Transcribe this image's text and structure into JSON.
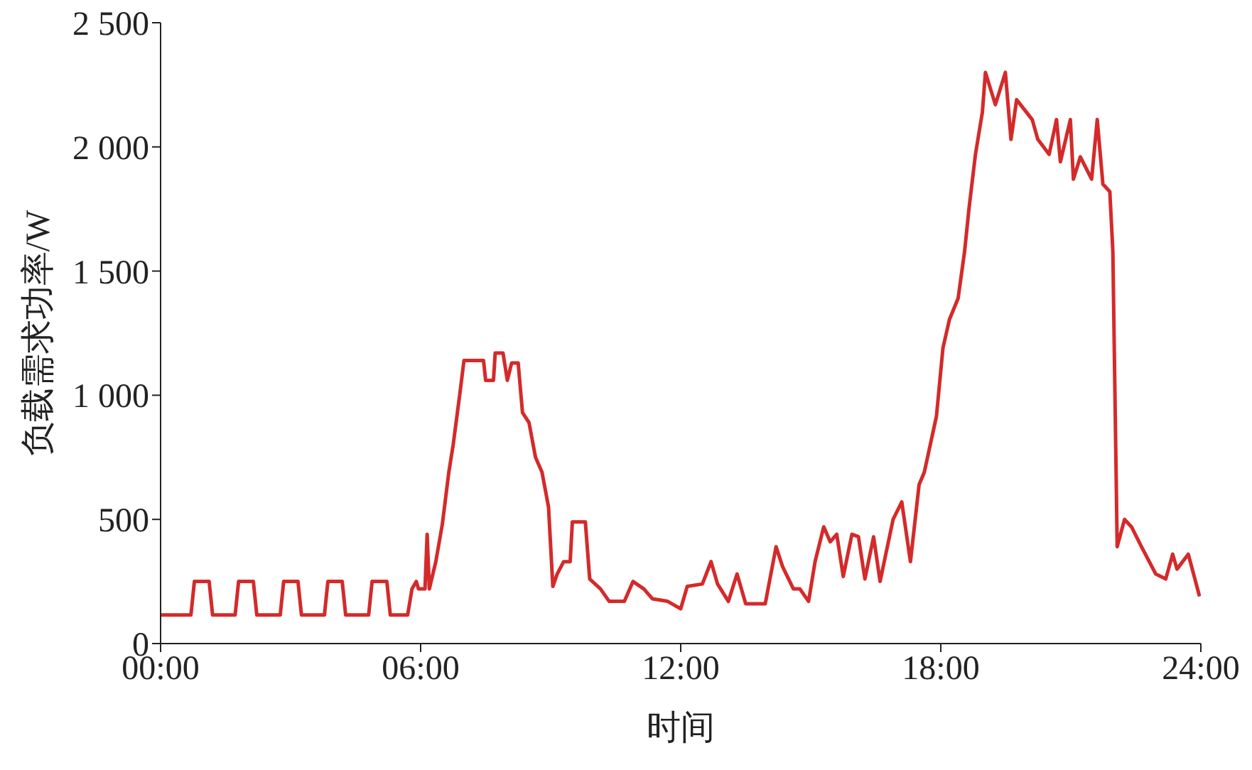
{
  "chart_data": {
    "type": "line",
    "xlabel": "时间",
    "ylabel": "负载需求功率/W",
    "xlim": [
      0,
      24
    ],
    "xticks": [
      {
        "value": 0,
        "label": "00:00"
      },
      {
        "value": 6,
        "label": "06:00"
      },
      {
        "value": 12,
        "label": "12:00"
      },
      {
        "value": 18,
        "label": "18:00"
      },
      {
        "value": 24,
        "label": "24:00"
      }
    ],
    "ylim": [
      0,
      2500
    ],
    "yticks": [
      0,
      500,
      {
        "value": 1000,
        "label": "1 000"
      },
      {
        "value": 1500,
        "label": "1 500"
      },
      {
        "value": 2000,
        "label": "2 000"
      },
      {
        "value": 2500,
        "label": "2 500"
      }
    ],
    "marker": "none",
    "line_style": "solid",
    "x": [
      0,
      0.7,
      0.78,
      1.12,
      1.2,
      1.72,
      1.8,
      2.14,
      2.22,
      2.76,
      2.84,
      3.17,
      3.25,
      3.78,
      3.86,
      4.19,
      4.27,
      4.8,
      4.88,
      5.22,
      5.3,
      5.7,
      5.8,
      5.9,
      5.95,
      6.1,
      6.15,
      6.2,
      6.35,
      6.5,
      6.65,
      6.75,
      6.9,
      7.0,
      7.45,
      7.5,
      7.68,
      7.72,
      7.9,
      8.0,
      8.1,
      8.25,
      8.35,
      8.5,
      8.65,
      8.8,
      8.95,
      9.05,
      9.15,
      9.3,
      9.45,
      9.5,
      9.8,
      9.9,
      10.15,
      10.35,
      10.7,
      10.9,
      11.15,
      11.35,
      11.7,
      12.0,
      12.15,
      12.5,
      12.7,
      12.85,
      13.1,
      13.3,
      13.5,
      13.95,
      14.2,
      14.35,
      14.6,
      14.75,
      14.95,
      15.1,
      15.3,
      15.45,
      15.6,
      15.75,
      15.95,
      16.1,
      16.25,
      16.45,
      16.6,
      16.9,
      17.1,
      17.3,
      17.5,
      17.62,
      17.9,
      18.05,
      18.2,
      18.4,
      18.55,
      18.65,
      18.8,
      18.96,
      19.03,
      19.26,
      19.49,
      19.62,
      19.75,
      20.11,
      20.24,
      20.5,
      20.67,
      20.76,
      20.99,
      21.06,
      21.22,
      21.48,
      21.61,
      21.74,
      21.9,
      21.97,
      22.07,
      22.24,
      22.4,
      22.63,
      22.96,
      23.19,
      23.35,
      23.45,
      23.71,
      23.97
    ],
    "series": [
      {
        "color": "#d42a2a",
        "values": [
          115,
          115,
          250,
          250,
          115,
          115,
          250,
          250,
          115,
          115,
          250,
          250,
          115,
          115,
          250,
          250,
          115,
          115,
          250,
          250,
          115,
          115,
          220,
          250,
          220,
          220,
          440,
          220,
          330,
          480,
          690,
          800,
          1000,
          1140,
          1140,
          1060,
          1060,
          1170,
          1170,
          1060,
          1130,
          1130,
          930,
          890,
          750,
          690,
          550,
          230,
          280,
          330,
          330,
          490,
          490,
          260,
          220,
          170,
          170,
          250,
          220,
          180,
          170,
          140,
          230,
          240,
          330,
          240,
          170,
          280,
          160,
          160,
          390,
          310,
          220,
          220,
          170,
          330,
          470,
          410,
          440,
          270,
          440,
          430,
          260,
          430,
          250,
          500,
          570,
          330,
          640,
          690,
          915,
          1190,
          1305,
          1390,
          1580,
          1750,
          1970,
          2140,
          2300,
          2170,
          2300,
          2030,
          2190,
          2110,
          2030,
          1970,
          2110,
          1940,
          2110,
          1870,
          1960,
          1870,
          2110,
          1850,
          1820,
          1580,
          390,
          500,
          470,
          390,
          280,
          260,
          360,
          300,
          360,
          190
        ]
      }
    ]
  }
}
